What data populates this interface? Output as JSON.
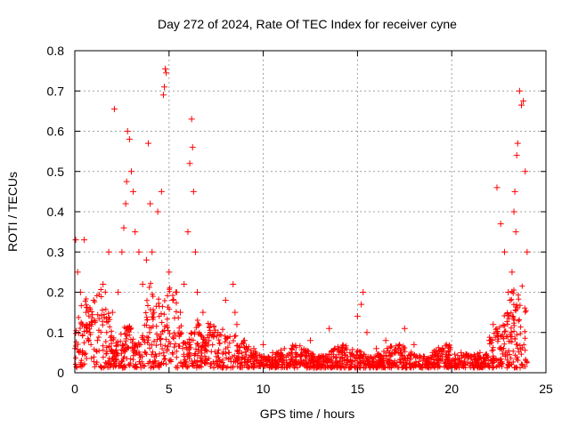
{
  "chart_data": {
    "type": "scatter",
    "title": "Day 272 of 2024, Rate Of TEC Index for receiver cyne",
    "xlabel": "GPS time / hours",
    "ylabel": "ROTI / TECUs",
    "xlim": [
      0,
      25
    ],
    "ylim": [
      0,
      0.8
    ],
    "xticks": [
      0,
      5,
      10,
      15,
      20,
      25
    ],
    "xtick_labels": [
      "0",
      "5",
      "10",
      "15",
      "20",
      "25"
    ],
    "yticks": [
      0,
      0.1,
      0.2,
      0.3,
      0.4,
      0.5,
      0.6,
      0.7,
      0.8
    ],
    "ytick_labels": [
      "0",
      "0.1",
      "0.2",
      "0.3",
      "0.4",
      "0.5",
      "0.6",
      "0.7",
      "0.8"
    ],
    "grid": true,
    "marker": "+",
    "color": "#ff0000",
    "series": [
      {
        "name": "ROTI",
        "x": [
          0.05,
          0.15,
          0.3,
          0.4,
          0.5,
          0.6,
          0.8,
          1.0,
          1.2,
          1.5,
          1.8,
          2.0,
          2.1,
          2.3,
          2.5,
          2.6,
          2.7,
          2.75,
          2.8,
          2.9,
          3.0,
          3.1,
          3.2,
          3.4,
          3.6,
          3.8,
          3.9,
          4.0,
          4.1,
          4.2,
          4.4,
          4.6,
          4.7,
          4.75,
          4.8,
          4.85,
          5.0,
          5.2,
          5.4,
          5.6,
          5.8,
          6.0,
          6.1,
          6.2,
          6.25,
          6.3,
          6.4,
          6.5,
          6.8,
          7.2,
          7.6,
          8.0,
          8.4,
          8.5,
          8.6,
          9.0,
          9.5,
          10.0,
          10.5,
          11.0,
          11.5,
          12.0,
          12.5,
          13.0,
          13.5,
          13.8,
          14.2,
          14.6,
          15.0,
          15.2,
          15.3,
          15.5,
          16.0,
          16.5,
          17.0,
          17.5,
          18.0,
          18.5,
          19.0,
          19.5,
          20.0,
          20.5,
          21.0,
          21.5,
          22.0,
          22.2,
          22.4,
          22.6,
          22.8,
          23.0,
          23.1,
          23.2,
          23.3,
          23.35,
          23.4,
          23.45,
          23.5,
          23.6,
          23.7,
          23.8,
          23.9,
          24.0
        ],
        "y": [
          0.33,
          0.25,
          0.2,
          0.12,
          0.33,
          0.15,
          0.1,
          0.18,
          0.08,
          0.22,
          0.3,
          0.15,
          0.655,
          0.2,
          0.3,
          0.36,
          0.42,
          0.475,
          0.6,
          0.58,
          0.5,
          0.45,
          0.35,
          0.3,
          0.22,
          0.28,
          0.57,
          0.42,
          0.3,
          0.15,
          0.4,
          0.45,
          0.69,
          0.71,
          0.755,
          0.745,
          0.25,
          0.18,
          0.2,
          0.15,
          0.22,
          0.35,
          0.52,
          0.63,
          0.56,
          0.45,
          0.3,
          0.2,
          0.15,
          0.12,
          0.1,
          0.18,
          0.22,
          0.15,
          0.12,
          0.08,
          0.06,
          0.07,
          0.05,
          0.045,
          0.05,
          0.04,
          0.08,
          0.04,
          0.11,
          0.06,
          0.05,
          0.05,
          0.14,
          0.17,
          0.2,
          0.1,
          0.06,
          0.08,
          0.05,
          0.11,
          0.07,
          0.04,
          0.05,
          0.04,
          0.03,
          0.05,
          0.04,
          0.05,
          0.08,
          0.12,
          0.46,
          0.37,
          0.3,
          0.2,
          0.18,
          0.25,
          0.4,
          0.45,
          0.35,
          0.54,
          0.57,
          0.7,
          0.665,
          0.675,
          0.5,
          0.3
        ]
      }
    ]
  }
}
